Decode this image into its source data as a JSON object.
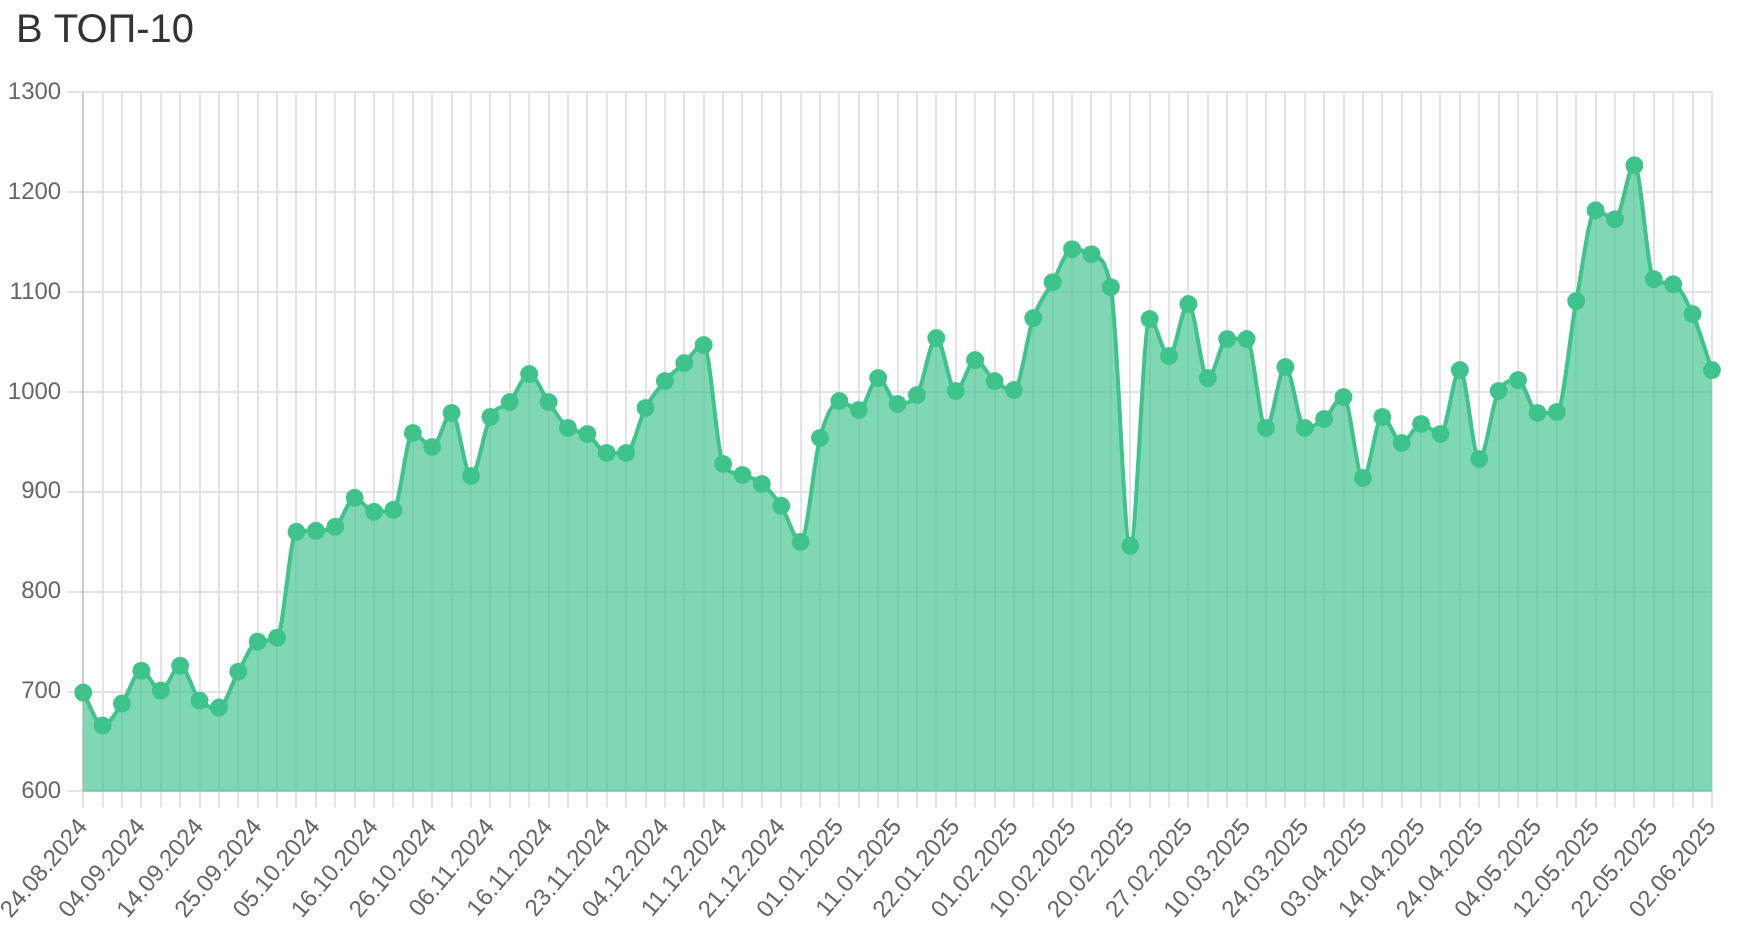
{
  "chart_data": {
    "type": "area",
    "title": "В ТОП-10",
    "categories": [
      "24.08.2024",
      null,
      null,
      "04.09.2024",
      null,
      null,
      "14.09.2024",
      null,
      null,
      "25.09.2024",
      null,
      null,
      "05.10.2024",
      null,
      null,
      "16.10.2024",
      null,
      null,
      "26.10.2024",
      null,
      null,
      "06.11.2024",
      null,
      null,
      "16.11.2024",
      null,
      null,
      "23.11.2024",
      null,
      null,
      "04.12.2024",
      null,
      null,
      "11.12.2024",
      null,
      null,
      "21.12.2024",
      null,
      null,
      "01.01.2025",
      null,
      null,
      "11.01.2025",
      null,
      null,
      "22.01.2025",
      null,
      null,
      "01.02.2025",
      null,
      null,
      "10.02.2025",
      null,
      null,
      "20.02.2025",
      null,
      null,
      "27.02.2025",
      null,
      null,
      "10.03.2025",
      null,
      null,
      "24.03.2025",
      null,
      null,
      "03.04.2025",
      null,
      null,
      "14.04.2025",
      null,
      null,
      "24.04.2025",
      null,
      null,
      "04.05.2025",
      null,
      null,
      "12.05.2025",
      null,
      null,
      "22.05.2025",
      null,
      null,
      "02.06.2025"
    ],
    "series": [
      {
        "color": "#3ec38b",
        "values": [
          699,
          666,
          688,
          721,
          701,
          726,
          691,
          684,
          720,
          750,
          754,
          860,
          861,
          865,
          894,
          880,
          882,
          959,
          945,
          979,
          916,
          975,
          990,
          1018,
          990,
          964,
          958,
          939,
          939,
          984,
          1011,
          1029,
          1047,
          928,
          917,
          908,
          886,
          850,
          954,
          991,
          982,
          1014,
          988,
          997,
          1054,
          1001,
          1032,
          1011,
          1002,
          1074,
          1110,
          1143,
          1138,
          1105,
          846,
          1073,
          1036,
          1088,
          1014,
          1053,
          1053,
          964,
          1025,
          964,
          973,
          995,
          914,
          975,
          949,
          968,
          958,
          1022,
          933,
          1001,
          1012,
          979,
          980,
          1091,
          1182,
          1173,
          1227,
          1113,
          1108,
          1078,
          1022
        ]
      }
    ],
    "ylim": [
      600,
      1300
    ],
    "yticks": [
      600,
      700,
      800,
      900,
      1000,
      1100,
      1200,
      1300
    ],
    "grid": true,
    "legend": false,
    "marker": "circle",
    "line_style": "solid"
  }
}
